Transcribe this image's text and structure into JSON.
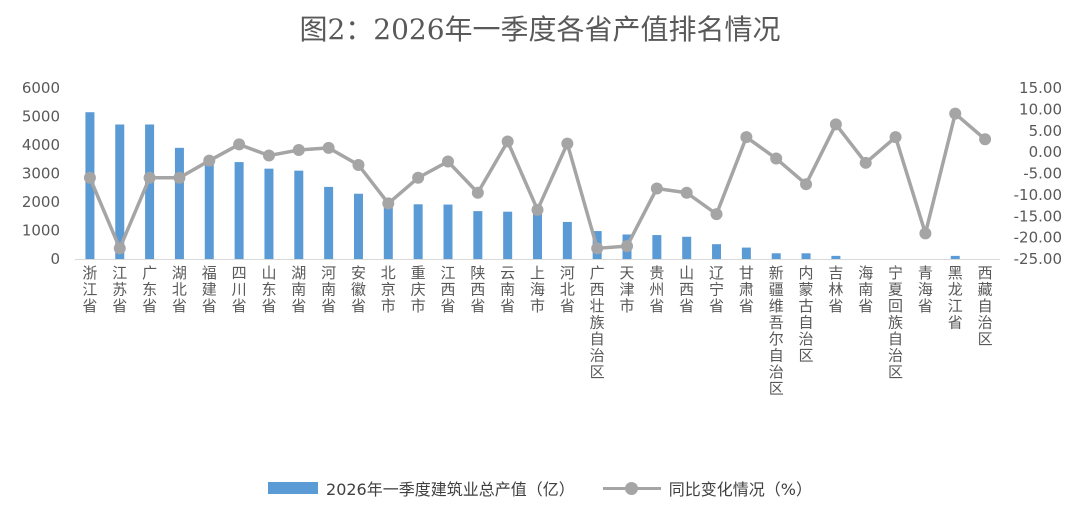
{
  "chart_data": {
    "type": "bar",
    "title": "图2：2026年一季度各省产值排名情况",
    "categories": [
      "浙江省",
      "江苏省",
      "广东省",
      "湖北省",
      "福建省",
      "四川省",
      "山东省",
      "湖南省",
      "河南省",
      "安徽省",
      "北京市",
      "重庆市",
      "江西省",
      "陕西省",
      "云南省",
      "上海市",
      "河北省",
      "广西壮族自治区",
      "天津市",
      "贵州省",
      "山西省",
      "辽宁省",
      "甘肃省",
      "新疆维吾尔自治区",
      "内蒙古自治区",
      "吉林省",
      "海南省",
      "宁夏回族自治区",
      "青海省",
      "黑龙江省",
      "西藏自治区"
    ],
    "series": [
      {
        "name": "2026年一季度建筑业总产值（亿）",
        "type": "bar",
        "axis": "left",
        "color": "#5b9bd5",
        "values": [
          5150,
          4720,
          4720,
          3900,
          3550,
          3400,
          3170,
          3100,
          2530,
          2290,
          1960,
          1920,
          1910,
          1680,
          1660,
          1580,
          1300,
          980,
          860,
          840,
          780,
          520,
          400,
          200,
          200,
          110,
          0,
          0,
          0,
          110,
          0
        ]
      },
      {
        "name": "同比变化情况（%）",
        "type": "line",
        "axis": "right",
        "color": "#a5a5a5",
        "values": [
          -6.0,
          -22.5,
          -6.0,
          -6.0,
          -2.0,
          1.8,
          -0.8,
          0.5,
          1.0,
          -3.0,
          -12.0,
          -6.0,
          -2.2,
          -9.5,
          2.5,
          -13.5,
          2.0,
          -22.5,
          -22.0,
          -8.5,
          -9.5,
          -14.5,
          3.5,
          -1.5,
          -7.5,
          6.5,
          -2.5,
          3.5,
          -19.0,
          9.0,
          3.0
        ]
      }
    ],
    "y_left": {
      "min": 0,
      "max": 6000,
      "step": 1000,
      "ticks": [
        "0",
        "1000",
        "2000",
        "3000",
        "4000",
        "5000",
        "6000"
      ]
    },
    "y_right": {
      "min": -25,
      "max": 15,
      "step": 5,
      "ticks": [
        "-25.00",
        "-20.00",
        "-15.00",
        "-10.00",
        "-5.00",
        "0.00",
        "5.00",
        "10.00",
        "15.00"
      ]
    },
    "grid": false,
    "legend": "bottom"
  }
}
